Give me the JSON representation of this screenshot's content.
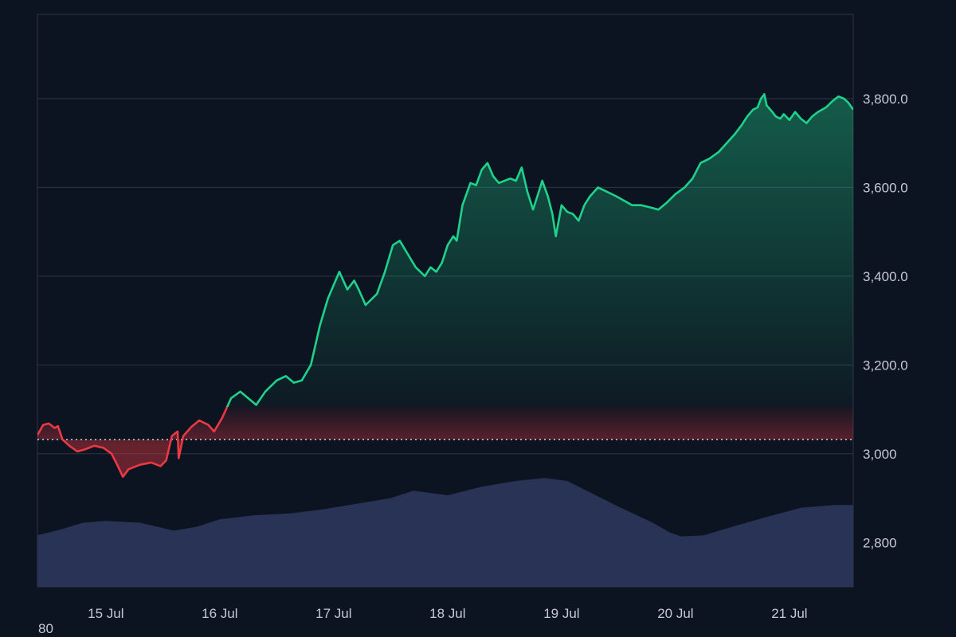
{
  "chart_data": {
    "type": "area",
    "baseline": 3032,
    "ylim": [
      2700,
      3990
    ],
    "xlim_days": [
      14.4,
      21.56
    ],
    "grid": "horizontal",
    "y_ticks": [
      {
        "value": 2800,
        "label": "2,800"
      },
      {
        "value": 3000,
        "label": "3,000"
      },
      {
        "value": 3200,
        "label": "3,200.0"
      },
      {
        "value": 3400,
        "label": "3,400.0"
      },
      {
        "value": 3600,
        "label": "3,600.0"
      },
      {
        "value": 3800,
        "label": "3,800.0"
      }
    ],
    "x_ticks": [
      {
        "day": 15,
        "label": "15 Jul"
      },
      {
        "day": 16,
        "label": "16 Jul"
      },
      {
        "day": 17,
        "label": "17 Jul"
      },
      {
        "day": 18,
        "label": "18 Jul"
      },
      {
        "day": 19,
        "label": "19 Jul"
      },
      {
        "day": 20,
        "label": "20 Jul"
      },
      {
        "day": 21,
        "label": "21 Jul"
      }
    ],
    "series": [
      {
        "values": [
          [
            14.4,
            3042
          ],
          [
            14.45,
            3065
          ],
          [
            14.5,
            3068
          ],
          [
            14.55,
            3058
          ],
          [
            14.58,
            3062
          ],
          [
            14.62,
            3032
          ],
          [
            14.68,
            3018
          ],
          [
            14.75,
            3005
          ],
          [
            14.82,
            3010
          ],
          [
            14.9,
            3018
          ],
          [
            14.98,
            3013
          ],
          [
            15.05,
            3000
          ],
          [
            15.1,
            2975
          ],
          [
            15.15,
            2948
          ],
          [
            15.2,
            2965
          ],
          [
            15.3,
            2975
          ],
          [
            15.4,
            2980
          ],
          [
            15.48,
            2972
          ],
          [
            15.53,
            2985
          ],
          [
            15.58,
            3040
          ],
          [
            15.63,
            3050
          ],
          [
            15.64,
            2990
          ],
          [
            15.68,
            3040
          ],
          [
            15.75,
            3060
          ],
          [
            15.82,
            3075
          ],
          [
            15.9,
            3065
          ],
          [
            15.95,
            3050
          ],
          [
            16.02,
            3080
          ],
          [
            16.1,
            3125
          ],
          [
            16.18,
            3140
          ],
          [
            16.25,
            3125
          ],
          [
            16.32,
            3110
          ],
          [
            16.4,
            3140
          ],
          [
            16.5,
            3165
          ],
          [
            16.58,
            3175
          ],
          [
            16.65,
            3160
          ],
          [
            16.72,
            3165
          ],
          [
            16.8,
            3200
          ],
          [
            16.88,
            3290
          ],
          [
            16.95,
            3350
          ],
          [
            17.0,
            3380
          ],
          [
            17.05,
            3410
          ],
          [
            17.12,
            3370
          ],
          [
            17.18,
            3390
          ],
          [
            17.22,
            3370
          ],
          [
            17.28,
            3335
          ],
          [
            17.32,
            3345
          ],
          [
            17.38,
            3360
          ],
          [
            17.45,
            3410
          ],
          [
            17.52,
            3470
          ],
          [
            17.58,
            3480
          ],
          [
            17.65,
            3450
          ],
          [
            17.72,
            3420
          ],
          [
            17.8,
            3400
          ],
          [
            17.85,
            3420
          ],
          [
            17.9,
            3410
          ],
          [
            17.95,
            3430
          ],
          [
            18.0,
            3470
          ],
          [
            18.05,
            3490
          ],
          [
            18.08,
            3480
          ],
          [
            18.13,
            3560
          ],
          [
            18.2,
            3610
          ],
          [
            18.25,
            3605
          ],
          [
            18.3,
            3640
          ],
          [
            18.35,
            3655
          ],
          [
            18.4,
            3625
          ],
          [
            18.45,
            3610
          ],
          [
            18.5,
            3615
          ],
          [
            18.55,
            3620
          ],
          [
            18.6,
            3615
          ],
          [
            18.65,
            3645
          ],
          [
            18.7,
            3590
          ],
          [
            18.75,
            3550
          ],
          [
            18.8,
            3590
          ],
          [
            18.83,
            3615
          ],
          [
            18.88,
            3580
          ],
          [
            18.92,
            3540
          ],
          [
            18.95,
            3490
          ],
          [
            19.0,
            3560
          ],
          [
            19.05,
            3545
          ],
          [
            19.1,
            3540
          ],
          [
            19.15,
            3525
          ],
          [
            19.2,
            3560
          ],
          [
            19.25,
            3580
          ],
          [
            19.32,
            3600
          ],
          [
            19.4,
            3590
          ],
          [
            19.48,
            3580
          ],
          [
            19.55,
            3570
          ],
          [
            19.62,
            3560
          ],
          [
            19.7,
            3560
          ],
          [
            19.78,
            3555
          ],
          [
            19.85,
            3550
          ],
          [
            19.92,
            3565
          ],
          [
            20.0,
            3585
          ],
          [
            20.08,
            3600
          ],
          [
            20.15,
            3620
          ],
          [
            20.22,
            3655
          ],
          [
            20.3,
            3665
          ],
          [
            20.38,
            3680
          ],
          [
            20.45,
            3700
          ],
          [
            20.52,
            3720
          ],
          [
            20.58,
            3740
          ],
          [
            20.63,
            3760
          ],
          [
            20.68,
            3775
          ],
          [
            20.72,
            3780
          ],
          [
            20.75,
            3800
          ],
          [
            20.78,
            3810
          ],
          [
            20.8,
            3785
          ],
          [
            20.85,
            3770
          ],
          [
            20.88,
            3760
          ],
          [
            20.92,
            3755
          ],
          [
            20.95,
            3765
          ],
          [
            21.0,
            3752
          ],
          [
            21.05,
            3770
          ],
          [
            21.1,
            3755
          ],
          [
            21.15,
            3745
          ],
          [
            21.2,
            3760
          ],
          [
            21.25,
            3770
          ],
          [
            21.32,
            3780
          ],
          [
            21.38,
            3795
          ],
          [
            21.43,
            3805
          ],
          [
            21.48,
            3800
          ],
          [
            21.52,
            3790
          ],
          [
            21.56,
            3775
          ]
        ]
      }
    ],
    "volume": [
      [
        14.4,
        0.09
      ],
      [
        14.6,
        0.1
      ],
      [
        14.8,
        0.112
      ],
      [
        15.0,
        0.115
      ],
      [
        15.3,
        0.112
      ],
      [
        15.6,
        0.098
      ],
      [
        15.8,
        0.105
      ],
      [
        16.0,
        0.118
      ],
      [
        16.3,
        0.125
      ],
      [
        16.6,
        0.128
      ],
      [
        16.9,
        0.135
      ],
      [
        17.2,
        0.145
      ],
      [
        17.5,
        0.155
      ],
      [
        17.7,
        0.168
      ],
      [
        18.0,
        0.16
      ],
      [
        18.3,
        0.175
      ],
      [
        18.6,
        0.185
      ],
      [
        18.85,
        0.19
      ],
      [
        19.05,
        0.185
      ],
      [
        19.3,
        0.16
      ],
      [
        19.5,
        0.14
      ],
      [
        19.8,
        0.112
      ],
      [
        19.95,
        0.095
      ],
      [
        20.05,
        0.088
      ],
      [
        20.25,
        0.09
      ],
      [
        20.5,
        0.105
      ],
      [
        20.8,
        0.122
      ],
      [
        21.1,
        0.138
      ],
      [
        21.4,
        0.143
      ],
      [
        21.56,
        0.143
      ]
    ],
    "colors": {
      "up": "#1fd28c",
      "down": "#ea3943",
      "volume": "#2b3558",
      "grid": "#2e3544",
      "baseline": "#cfd3da"
    }
  },
  "stray_label": "80"
}
